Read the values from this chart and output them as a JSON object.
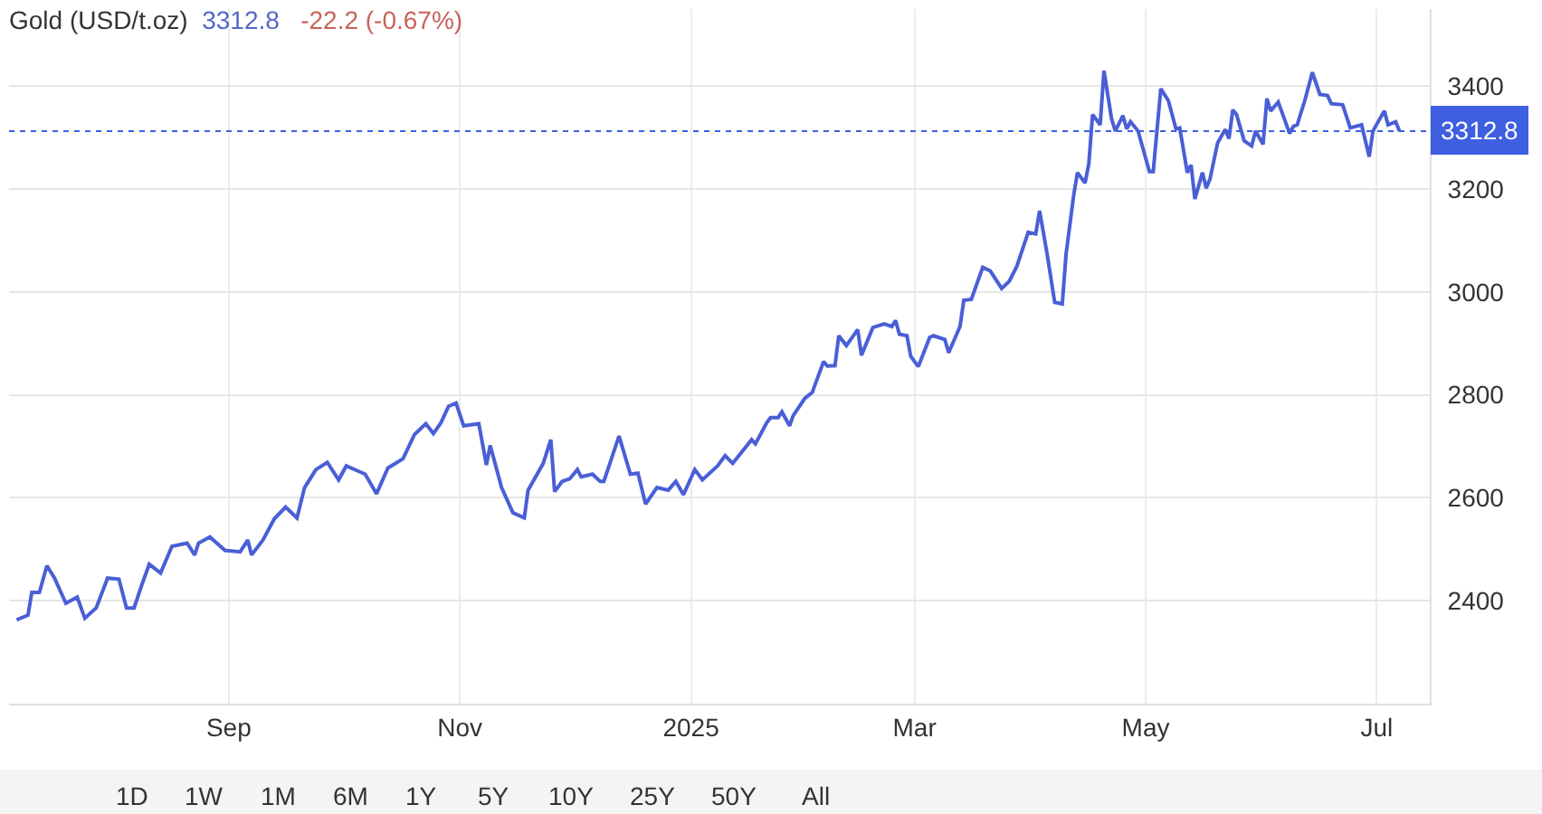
{
  "chart_data": {
    "type": "line",
    "title": "Gold (USD/t.oz)",
    "annotations": [
      "3312.8",
      "-22.2 (-0.67%)",
      "1D",
      "1W",
      "1M",
      "6M",
      "1Y",
      "5Y",
      "10Y",
      "25Y",
      "50Y",
      "All"
    ],
    "x": [
      "2024-07-07",
      "2024-07-10",
      "2024-07-11",
      "2024-07-13",
      "2024-07-15",
      "2024-07-17",
      "2024-07-20",
      "2024-07-23",
      "2024-07-25",
      "2024-07-28",
      "2024-07-31",
      "2024-08-03",
      "2024-08-05",
      "2024-08-07",
      "2024-08-09",
      "2024-08-11",
      "2024-08-14",
      "2024-08-17",
      "2024-08-21",
      "2024-08-23",
      "2024-08-24",
      "2024-08-27",
      "2024-08-31",
      "2024-09-04",
      "2024-09-06",
      "2024-09-07",
      "2024-09-10",
      "2024-09-13",
      "2024-09-16",
      "2024-09-19",
      "2024-09-21",
      "2024-09-24",
      "2024-09-27",
      "2024-09-30",
      "2024-10-02",
      "2024-10-07",
      "2024-10-10",
      "2024-10-13",
      "2024-10-17",
      "2024-10-20",
      "2024-10-23",
      "2024-10-25",
      "2024-10-27",
      "2024-10-29",
      "2024-10-31",
      "2024-11-02",
      "2024-11-06",
      "2024-11-08",
      "2024-11-09",
      "2024-11-12",
      "2024-11-15",
      "2024-11-18",
      "2024-11-19",
      "2024-11-23",
      "2024-11-25",
      "2024-11-26",
      "2024-11-28",
      "2024-11-30",
      "2024-12-02",
      "2024-12-03",
      "2024-12-06",
      "2024-12-08",
      "2024-12-09",
      "2024-12-13",
      "2024-12-16",
      "2024-12-18",
      "2024-12-20",
      "2024-12-23",
      "2024-12-26",
      "2024-12-28",
      "2024-12-30",
      "2025-01-02",
      "2025-01-04",
      "2025-01-08",
      "2025-01-10",
      "2025-01-12",
      "2025-01-17",
      "2025-01-18",
      "2025-01-21",
      "2025-01-22",
      "2025-01-24",
      "2025-01-25",
      "2025-01-27",
      "2025-01-28",
      "2025-01-31",
      "2025-02-02",
      "2025-02-05",
      "2025-02-06",
      "2025-02-08",
      "2025-02-09",
      "2025-02-11",
      "2025-02-14",
      "2025-02-15",
      "2025-02-18",
      "2025-02-21",
      "2025-02-23",
      "2025-02-24",
      "2025-02-25",
      "2025-02-27",
      "2025-02-28",
      "2025-03-02",
      "2025-03-05",
      "2025-03-06",
      "2025-03-09",
      "2025-03-10",
      "2025-03-13",
      "2025-03-14",
      "2025-03-16",
      "2025-03-19",
      "2025-03-21",
      "2025-03-24",
      "2025-03-26",
      "2025-03-28",
      "2025-03-31",
      "2025-04-02",
      "2025-04-03",
      "2025-04-05",
      "2025-04-07",
      "2025-04-09",
      "2025-04-10",
      "2025-04-12",
      "2025-04-13",
      "2025-04-15",
      "2025-04-16",
      "2025-04-17",
      "2025-04-19",
      "2025-04-20",
      "2025-04-22",
      "2025-04-23",
      "2025-04-25",
      "2025-04-26",
      "2025-04-27",
      "2025-04-29",
      "2025-05-02",
      "2025-05-03",
      "2025-05-05",
      "2025-05-07",
      "2025-05-09",
      "2025-05-10",
      "2025-05-12",
      "2025-05-13",
      "2025-05-14",
      "2025-05-16",
      "2025-05-17",
      "2025-05-18",
      "2025-05-20",
      "2025-05-22",
      "2025-05-23",
      "2025-05-24",
      "2025-05-25",
      "2025-05-27",
      "2025-05-29",
      "2025-05-30",
      "2025-06-01",
      "2025-06-02",
      "2025-06-03",
      "2025-06-05",
      "2025-06-06",
      "2025-06-08",
      "2025-06-09",
      "2025-06-10",
      "2025-06-12",
      "2025-06-14",
      "2025-06-16",
      "2025-06-18",
      "2025-06-19",
      "2025-06-22",
      "2025-06-24",
      "2025-06-27",
      "2025-06-29",
      "2025-06-30",
      "2025-07-03",
      "2025-07-04",
      "2025-07-06",
      "2025-07-07"
    ],
    "series": [
      {
        "color": "#4a5fd6",
        "values": [
          2363,
          2372,
          2416,
          2416,
          2468,
          2444,
          2395,
          2407,
          2366,
          2386,
          2444,
          2442,
          2386,
          2386,
          2430,
          2471,
          2454,
          2506,
          2512,
          2489,
          2512,
          2524,
          2498,
          2495,
          2518,
          2489,
          2518,
          2559,
          2582,
          2561,
          2620,
          2655,
          2669,
          2635,
          2662,
          2646,
          2608,
          2658,
          2676,
          2723,
          2744,
          2725,
          2746,
          2778,
          2784,
          2740,
          2744,
          2664,
          2702,
          2620,
          2571,
          2561,
          2615,
          2667,
          2713,
          2612,
          2632,
          2637,
          2655,
          2641,
          2646,
          2632,
          2632,
          2720,
          2646,
          2648,
          2588,
          2620,
          2615,
          2632,
          2606,
          2655,
          2635,
          2662,
          2682,
          2667,
          2713,
          2705,
          2746,
          2756,
          2756,
          2767,
          2740,
          2760,
          2793,
          2805,
          2865,
          2856,
          2857,
          2915,
          2896,
          2927,
          2877,
          2931,
          2938,
          2933,
          2945,
          2918,
          2915,
          2875,
          2855,
          2912,
          2915,
          2908,
          2882,
          2933,
          2984,
          2986,
          3048,
          3041,
          3007,
          3021,
          3050,
          3116,
          3113,
          3158,
          3074,
          2980,
          2977,
          3074,
          3188,
          3232,
          3212,
          3249,
          3345,
          3325,
          3430,
          3337,
          3313,
          3343,
          3317,
          3331,
          3313,
          3234,
          3234,
          3395,
          3372,
          3317,
          3319,
          3232,
          3247,
          3181,
          3232,
          3202,
          3220,
          3290,
          3316,
          3298,
          3354,
          3345,
          3294,
          3284,
          3313,
          3287,
          3376,
          3352,
          3369,
          3349,
          3308,
          3322,
          3325,
          3372,
          3427,
          3384,
          3382,
          3366,
          3364,
          3319,
          3325,
          3263,
          3313,
          3352,
          3325,
          3331,
          3312.8
        ]
      }
    ],
    "xlim": [
      "2024-07-05",
      "2025-07-15"
    ],
    "xticks": [
      {
        "value": "2024-09-01",
        "label": "Sep"
      },
      {
        "value": "2024-11-01",
        "label": "Nov"
      },
      {
        "value": "2025-01-01",
        "label": "2025"
      },
      {
        "value": "2025-03-01",
        "label": "Mar"
      },
      {
        "value": "2025-05-01",
        "label": "May"
      },
      {
        "value": "2025-07-01",
        "label": "Jul"
      }
    ],
    "ylim": [
      2200,
      3550
    ],
    "yticks": [
      2400,
      2600,
      2800,
      3000,
      3200,
      3400
    ],
    "ref_lines": [
      {
        "axis": "y",
        "value": 3312.8,
        "label": "3312.8",
        "color": "#3d5fe0",
        "line_style": "dotted"
      }
    ],
    "grid": true,
    "marker": "none",
    "line_style": "solid"
  }
}
